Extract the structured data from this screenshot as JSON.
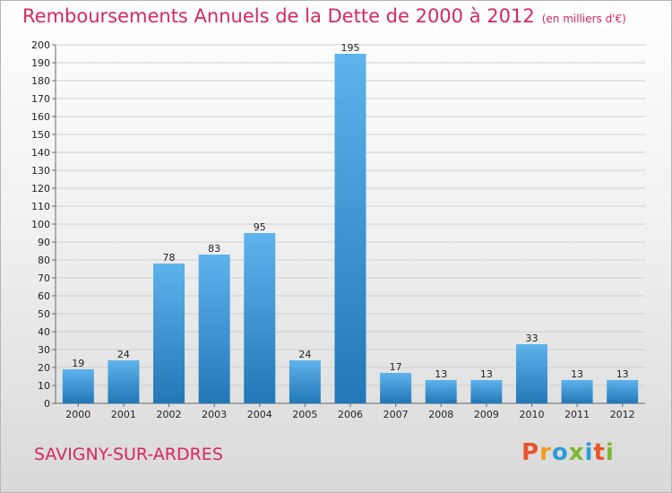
{
  "header": {
    "title": "Remboursements Annuels de la Dette de 2000 à 2012",
    "unit": "(en milliers d'€)"
  },
  "footer": {
    "city": "SAVIGNY-SUR-ARDRES",
    "logo": "Proxiti",
    "logo_letters": [
      {
        "char": "P",
        "color": "#e8542b"
      },
      {
        "char": "r",
        "color": "#f39a1e"
      },
      {
        "char": "o",
        "color": "#2e9bd6"
      },
      {
        "char": "x",
        "color": "#7cb832"
      },
      {
        "char": "i",
        "color": "#2e9bd6"
      },
      {
        "char": "t",
        "color": "#e8542b"
      },
      {
        "char": "i",
        "color": "#7cb832"
      }
    ]
  },
  "colors": {
    "title": "#d9275e",
    "bar_light": "#5aaee8",
    "bar_dark": "#2377b8",
    "grid": "#cfcfcf",
    "axis": "#666666"
  },
  "chart_data": {
    "type": "bar",
    "title": "Remboursements Annuels de la Dette de 2000 à 2012",
    "xlabel": "",
    "ylabel": "",
    "categories": [
      "2000",
      "2001",
      "2002",
      "2003",
      "2004",
      "2005",
      "2006",
      "2007",
      "2008",
      "2009",
      "2010",
      "2011",
      "2012"
    ],
    "values": [
      19,
      24,
      78,
      83,
      95,
      24,
      195,
      17,
      13,
      13,
      33,
      13,
      13
    ],
    "ylim": [
      0,
      200
    ],
    "yticks": [
      0,
      10,
      20,
      30,
      40,
      50,
      60,
      70,
      80,
      90,
      100,
      110,
      120,
      130,
      140,
      150,
      160,
      170,
      180,
      190,
      200
    ],
    "grid": true,
    "legend": "none"
  }
}
